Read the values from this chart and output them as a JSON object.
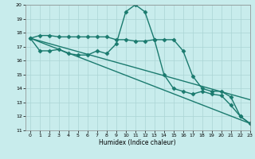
{
  "x": [
    0,
    1,
    2,
    3,
    4,
    5,
    6,
    7,
    8,
    9,
    10,
    11,
    12,
    13,
    14,
    15,
    16,
    17,
    18,
    19,
    20,
    21,
    22,
    23
  ],
  "line1": [
    17.6,
    17.8,
    17.8,
    17.7,
    17.7,
    17.7,
    17.7,
    17.7,
    17.7,
    17.5,
    17.5,
    17.4,
    17.4,
    17.5,
    17.5,
    17.5,
    16.7,
    14.9,
    14.0,
    13.8,
    13.8,
    13.4,
    12.0,
    11.5
  ],
  "line2": [
    17.6,
    16.7,
    16.7,
    16.8,
    16.5,
    16.4,
    16.4,
    16.7,
    16.5,
    17.2,
    19.5,
    20.0,
    19.5,
    17.5,
    15.0,
    14.0,
    13.8,
    13.6,
    13.8,
    13.6,
    13.5,
    12.8,
    12.0,
    11.5
  ],
  "line3_x": [
    0,
    23
  ],
  "line3_y": [
    17.6,
    11.5
  ],
  "line4_x": [
    0,
    23
  ],
  "line4_y": [
    17.6,
    13.2
  ],
  "xlim": [
    -0.5,
    23
  ],
  "ylim": [
    11,
    20
  ],
  "yticks": [
    11,
    12,
    13,
    14,
    15,
    16,
    17,
    18,
    19,
    20
  ],
  "xticks": [
    0,
    1,
    2,
    3,
    4,
    5,
    6,
    7,
    8,
    9,
    10,
    11,
    12,
    13,
    14,
    15,
    16,
    17,
    18,
    19,
    20,
    21,
    22,
    23
  ],
  "xlabel": "Humidex (Indice chaleur)",
  "line_color": "#1a7a6e",
  "bg_color": "#c8ecec",
  "grid_color": "#aad4d4",
  "marker": "D",
  "marker_size": 2.5,
  "linewidth": 1.0
}
